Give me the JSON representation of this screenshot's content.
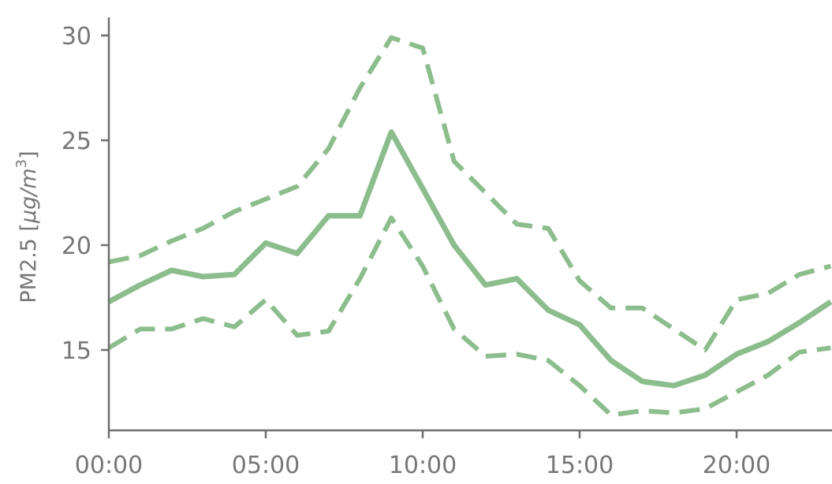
{
  "chart_data": {
    "type": "line",
    "xlabel": "",
    "ylabel": "PM2.5 [μg/m³]",
    "ylabel_parts": {
      "base": "PM2.5 [",
      "unit_italic": "μg/m",
      "superscript": "3",
      "close": "]"
    },
    "x_ticks": [
      "00:00",
      "05:00",
      "10:00",
      "15:00",
      "20:00"
    ],
    "y_ticks": [
      15,
      20,
      25,
      30
    ],
    "xlim": [
      "00:00",
      "23:00"
    ],
    "ylim": [
      11.0,
      30.8
    ],
    "grid": false,
    "legend": "none",
    "color": "#8cbd8c",
    "x": [
      "00:00",
      "01:00",
      "02:00",
      "03:00",
      "04:00",
      "05:00",
      "06:00",
      "07:00",
      "08:00",
      "09:00",
      "10:00",
      "11:00",
      "12:00",
      "13:00",
      "14:00",
      "15:00",
      "16:00",
      "17:00",
      "18:00",
      "19:00",
      "20:00",
      "21:00",
      "22:00",
      "23:00"
    ],
    "series": [
      {
        "style": "solid",
        "values": [
          17.3,
          18.1,
          18.8,
          18.5,
          18.6,
          20.1,
          19.6,
          21.4,
          21.4,
          25.4,
          22.7,
          20.0,
          18.1,
          18.4,
          16.9,
          16.2,
          14.5,
          13.5,
          13.3,
          13.8,
          14.8,
          15.4,
          16.3,
          17.3
        ]
      },
      {
        "style": "dashed",
        "values": [
          19.2,
          19.5,
          20.2,
          20.8,
          21.6,
          22.2,
          22.8,
          24.6,
          27.5,
          29.9,
          29.4,
          24.0,
          22.5,
          21.0,
          20.8,
          18.3,
          17.0,
          17.0,
          16.0,
          15.0,
          17.4,
          17.7,
          18.6,
          19.0
        ]
      },
      {
        "style": "dashed",
        "values": [
          15.1,
          16.0,
          16.0,
          16.5,
          16.1,
          17.4,
          15.7,
          15.9,
          18.4,
          21.3,
          19.0,
          16.0,
          14.7,
          14.8,
          14.5,
          13.3,
          11.9,
          12.1,
          12.0,
          12.2,
          13.0,
          13.8,
          14.9,
          15.1
        ]
      }
    ]
  }
}
